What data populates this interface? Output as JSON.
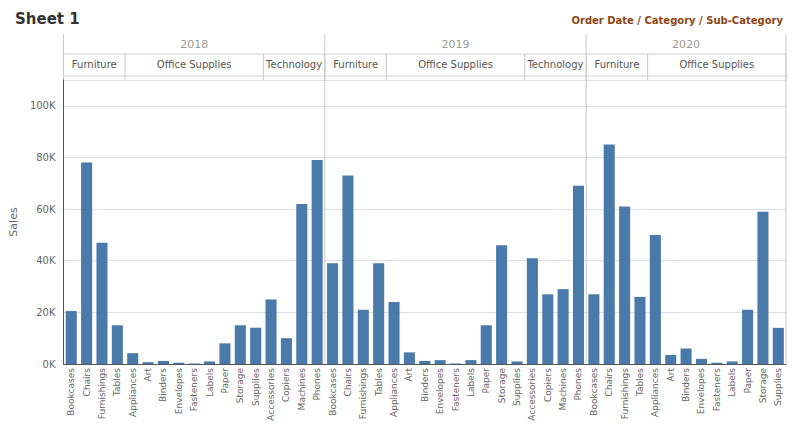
{
  "chart_data": {
    "type": "bar",
    "title": "Sheet 1",
    "xlabel": "Order Date / Category / Sub-Category",
    "ylabel": "Sales",
    "color": "#4a7aaa",
    "grid": true,
    "categories": [
      "Bookcases",
      "Chairs",
      "Furnishings",
      "Tables",
      "Appliances",
      "Art",
      "Binders",
      "Envelopes",
      "Fasteners",
      "Labels",
      "Paper",
      "Storage",
      "Supplies",
      "Accessories",
      "Copiers",
      "Machines",
      "Phones",
      "Bookcases",
      "Chairs",
      "Furnishings",
      "Tables",
      "Appliances",
      "Art",
      "Binders",
      "Envelopes",
      "Fasteners",
      "Labels",
      "Paper",
      "Storage",
      "Supplies",
      "Accessories",
      "Copiers",
      "Machines",
      "Phones",
      "Bookcases",
      "Chairs",
      "Furnishings",
      "Tables",
      "Appliances",
      "Art",
      "Binders",
      "Envelopes",
      "Fasteners",
      "Labels",
      "Paper",
      "Storage",
      "Supplies"
    ],
    "group_levels": [
      [
        "2018",
        "2018",
        "2018",
        "2018",
        "2018",
        "2018",
        "2018",
        "2018",
        "2018",
        "2018",
        "2018",
        "2018",
        "2018",
        "2018",
        "2018",
        "2018",
        "2018",
        "2019",
        "2019",
        "2019",
        "2019",
        "2019",
        "2019",
        "2019",
        "2019",
        "2019",
        "2019",
        "2019",
        "2019",
        "2019",
        "2019",
        "2019",
        "2019",
        "2019",
        "2020",
        "2020",
        "2020",
        "2020",
        "2020",
        "2020",
        "2020",
        "2020",
        "2020",
        "2020",
        "2020",
        "2020",
        "2020"
      ],
      [
        "Furniture",
        "Furniture",
        "Furniture",
        "Furniture",
        "Office Supplies",
        "Office Supplies",
        "Office Supplies",
        "Office Supplies",
        "Office Supplies",
        "Office Supplies",
        "Office Supplies",
        "Office Supplies",
        "Office Supplies",
        "Technology",
        "Technology",
        "Technology",
        "Technology",
        "Furniture",
        "Furniture",
        "Furniture",
        "Furniture",
        "Office Supplies",
        "Office Supplies",
        "Office Supplies",
        "Office Supplies",
        "Office Supplies",
        "Office Supplies",
        "Office Supplies",
        "Office Supplies",
        "Office Supplies",
        "Technology",
        "Technology",
        "Technology",
        "Technology",
        "Furniture",
        "Furniture",
        "Furniture",
        "Furniture",
        "Office Supplies",
        "Office Supplies",
        "Office Supplies",
        "Office Supplies",
        "Office Supplies",
        "Office Supplies",
        "Office Supplies",
        "Office Supplies",
        "Office Supplies"
      ]
    ],
    "values": [
      20500,
      78000,
      47000,
      15000,
      4200,
      700,
      1200,
      500,
      200,
      1000,
      8000,
      15000,
      14000,
      25000,
      10000,
      62000,
      79000,
      39000,
      73000,
      21000,
      39000,
      24000,
      4500,
      1200,
      1500,
      200,
      1500,
      15000,
      46000,
      1000,
      41000,
      27000,
      29000,
      69000,
      27000,
      85000,
      61000,
      26000,
      50000,
      3500,
      6000,
      2000,
      500,
      1000,
      21000,
      59000,
      14000
    ],
    "ylim": [
      0,
      110000
    ],
    "yticks": [
      {
        "value": 0,
        "label": "0K"
      },
      {
        "value": 20000,
        "label": "20K"
      },
      {
        "value": 40000,
        "label": "40K"
      },
      {
        "value": 60000,
        "label": "60K"
      },
      {
        "value": 80000,
        "label": "80K"
      },
      {
        "value": 100000,
        "label": "100K"
      }
    ]
  }
}
